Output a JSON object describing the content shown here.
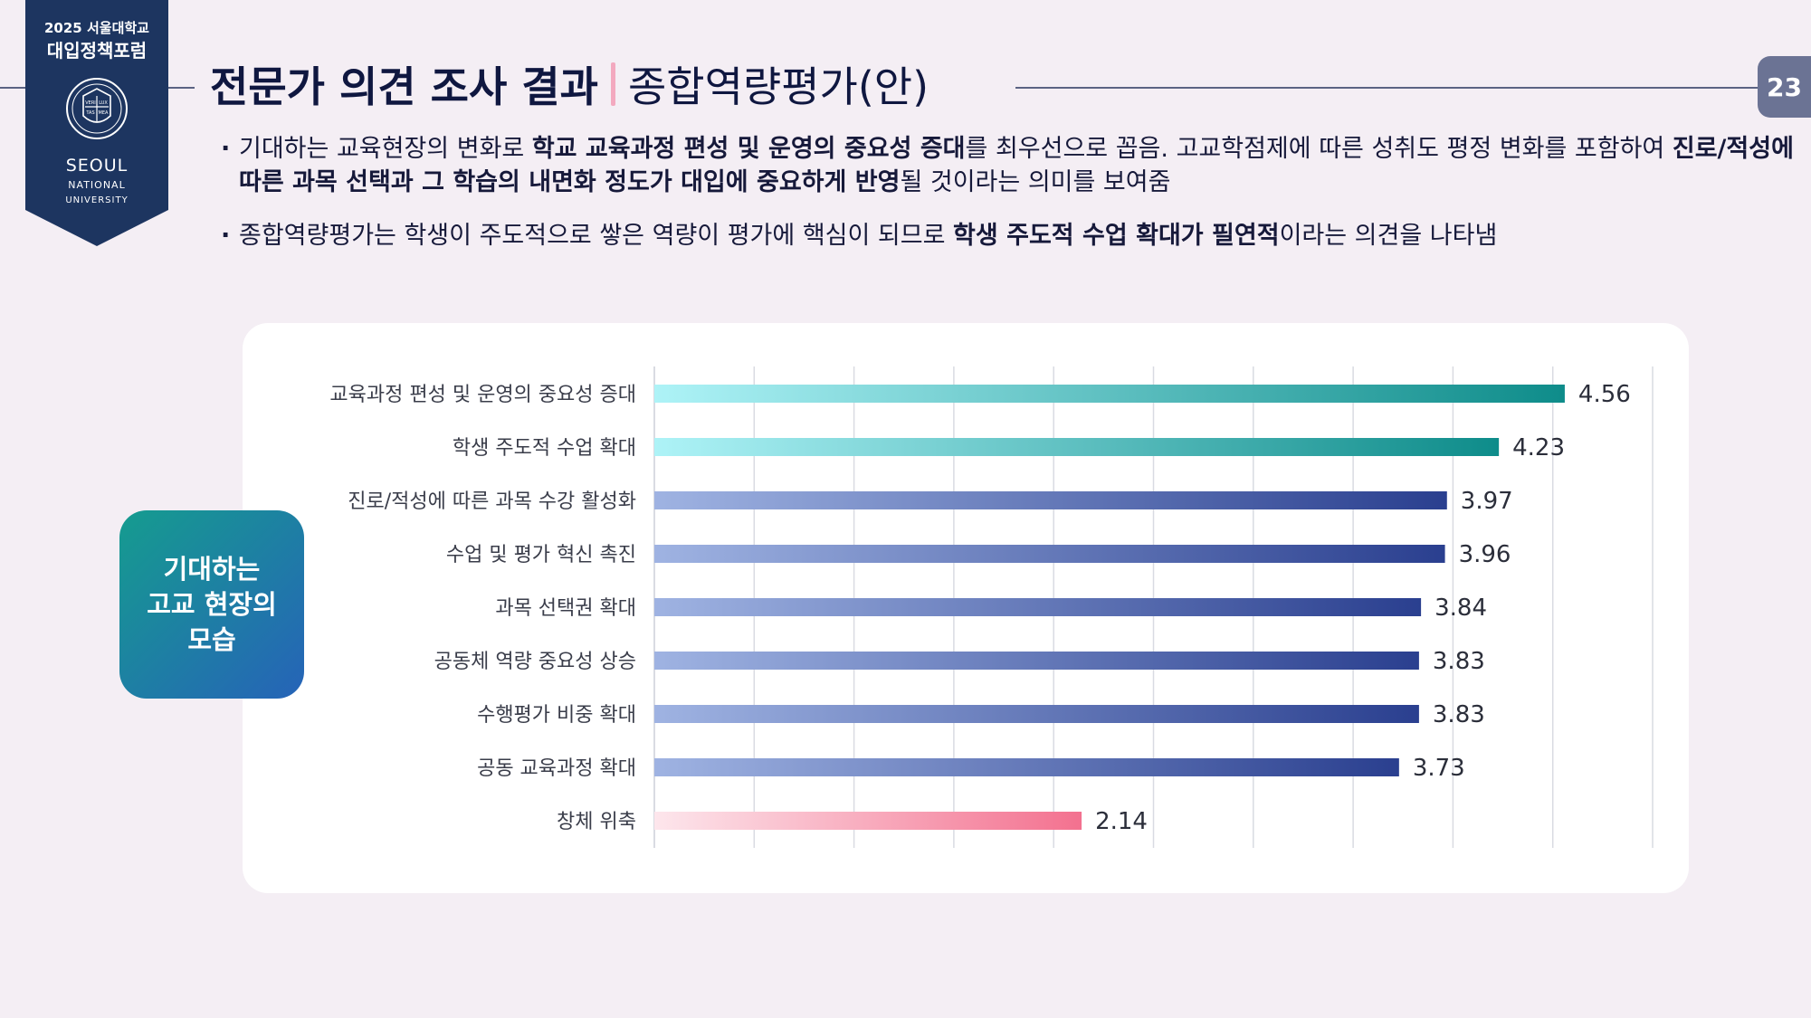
{
  "logo": {
    "year_label": "2025 서울대학교",
    "forum_label": "대입정책포럼",
    "seal_text": [
      "VERI",
      "LUX",
      "TAS",
      "MEA"
    ],
    "seoul": "SEOUL",
    "national": "NATIONAL",
    "university": "UNIVERSITY"
  },
  "header": {
    "title_main": "전문가 의견 조사 결과",
    "title_sub": "종합역량평가(안)",
    "page_number": "23"
  },
  "bullets": [
    {
      "parts": [
        {
          "t": "기대하는 교육현장의 변화로 ",
          "b": false
        },
        {
          "t": "학교 교육과정 편성 및 운영의 중요성 증대",
          "b": true
        },
        {
          "t": "를 최우선으로 꼽음. 고교학점제에 따른 성취도 평정 변화를 포함하여 ",
          "b": false
        },
        {
          "t": "진로/적성에 따른 과목 선택과 그 학습의 내면화 정도가 대입에 중요하게 반영",
          "b": true
        },
        {
          "t": "될 것이라는 의미를 보여줌",
          "b": false
        }
      ]
    },
    {
      "parts": [
        {
          "t": "종합역량평가는 학생이 주도적으로 쌓은 역량이 평가에 핵심이 되므로 ",
          "b": false
        },
        {
          "t": "학생 주도적 수업 확대가 필연적",
          "b": true
        },
        {
          "t": "이라는 의견을 나타냄",
          "b": false
        }
      ]
    }
  ],
  "side_label": [
    "기대하는",
    "고교 현장의",
    "모습"
  ],
  "colors": {
    "teal_start": "#aef3f7",
    "teal_end": "#0e8c8a",
    "blue_start": "#9fb3e2",
    "blue_end": "#2a3f8f",
    "pink_start": "#fde6ec",
    "pink_end": "#f3718f",
    "grid": "#d9dbe2"
  },
  "chart_data": {
    "type": "bar",
    "orientation": "horizontal",
    "categories": [
      "교육과정 편성 및 운영의 중요성 증대",
      "학생 주도적 수업 확대",
      "진로/적성에 따른 과목 수강 활성화",
      "수업 및 평가 혁신 촉진",
      "과목 선택권 확대",
      "공동체 역량 중요성 상승",
      "수행평가 비중 확대",
      "공동 교육과정 확대",
      "창체 위축"
    ],
    "values": [
      4.56,
      4.23,
      3.97,
      3.96,
      3.84,
      3.83,
      3.83,
      3.73,
      2.14
    ],
    "value_labels": [
      "4.56",
      "4.23",
      "3.97",
      "3.96",
      "3.84",
      "3.83",
      "3.83",
      "3.73",
      "2.14"
    ],
    "bar_styles": [
      "teal",
      "teal",
      "blue",
      "blue",
      "blue",
      "blue",
      "blue",
      "blue",
      "pink"
    ],
    "xlim": [
      0,
      5
    ],
    "grid": true,
    "axis_labels_shown": false
  }
}
